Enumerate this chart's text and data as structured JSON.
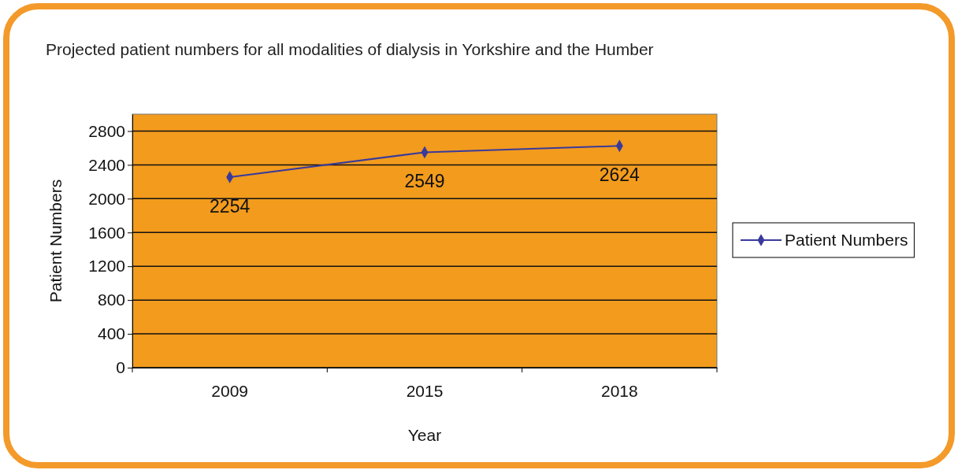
{
  "chart_data": {
    "type": "line",
    "title": "Projected patient numbers for all modalities of dialysis in Yorkshire and the Humber",
    "xlabel": "Year",
    "ylabel": "Patient Numbers",
    "categories": [
      "2009",
      "2015",
      "2018"
    ],
    "series": [
      {
        "name": "Patient Numbers",
        "color": "#3a3a9c",
        "values": [
          2254,
          2549,
          2624
        ]
      }
    ],
    "ylim": [
      0,
      3000
    ],
    "yticks": [
      0,
      400,
      800,
      1200,
      1600,
      2000,
      2400,
      2800
    ],
    "grid": "y",
    "legend": "right",
    "marker": "diamond",
    "line_style": "solid",
    "data_labels": true
  }
}
